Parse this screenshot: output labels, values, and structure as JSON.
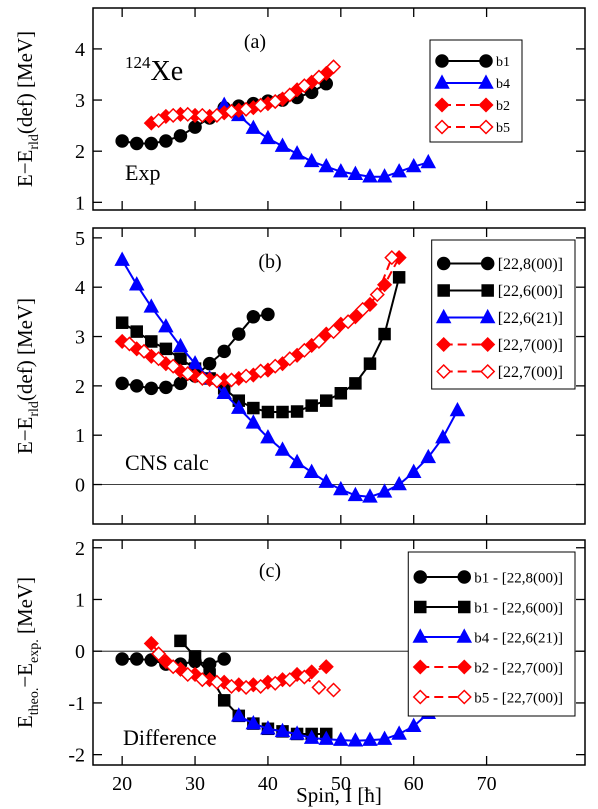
{
  "chart_data": [
    {
      "type": "line",
      "label": "(a)",
      "annotation": "Exp",
      "nucleus": [
        "124",
        "Xe"
      ],
      "y_label": [
        "E−E",
        "rld",
        "(def) [MeV]"
      ],
      "xlim": [
        16,
        83.5
      ],
      "xticks": [
        20,
        30,
        40,
        50,
        60,
        70
      ],
      "ylim": [
        0.85,
        4.8
      ],
      "yticks": [
        1,
        2,
        3,
        4
      ],
      "legend": "upper right",
      "series": [
        {
          "name": "b1",
          "color": "#000000",
          "marker": "circle",
          "filled": true,
          "dashed": false,
          "x": [
            20,
            22,
            24,
            26,
            28,
            30,
            32,
            34,
            36,
            38,
            40,
            42,
            44,
            46,
            48
          ],
          "values": [
            2.2,
            2.15,
            2.15,
            2.2,
            2.3,
            2.47,
            2.65,
            2.85,
            2.88,
            2.93,
            2.98,
            3.0,
            3.05,
            3.15,
            3.32
          ]
        },
        {
          "name": "b4",
          "color": "#0000ff",
          "marker": "triangle",
          "filled": true,
          "dashed": false,
          "x": [
            34,
            36,
            38,
            40,
            42,
            44,
            46,
            48,
            50,
            52,
            54,
            56,
            58,
            60,
            62
          ],
          "values": [
            2.9,
            2.7,
            2.45,
            2.25,
            2.1,
            1.95,
            1.8,
            1.7,
            1.6,
            1.55,
            1.5,
            1.5,
            1.6,
            1.7,
            1.78
          ]
        },
        {
          "name": "b2",
          "color": "#ff0000",
          "marker": "diamond",
          "filled": true,
          "dashed": true,
          "x": [
            24,
            26,
            28,
            30,
            32,
            34,
            36,
            38,
            40,
            42,
            44,
            46,
            48
          ],
          "values": [
            2.55,
            2.68,
            2.72,
            2.7,
            2.68,
            2.75,
            2.8,
            2.85,
            2.93,
            3.02,
            3.2,
            3.35,
            3.52
          ]
        },
        {
          "name": "b5",
          "color": "#ff0000",
          "marker": "diamond",
          "filled": false,
          "dashed": true,
          "x": [
            25,
            27,
            29,
            31,
            33,
            35,
            37,
            39,
            41,
            43,
            45,
            47,
            49
          ],
          "values": [
            2.6,
            2.7,
            2.72,
            2.7,
            2.7,
            2.78,
            2.82,
            2.9,
            2.97,
            3.1,
            3.28,
            3.45,
            3.65
          ]
        }
      ]
    },
    {
      "type": "line",
      "label": "(b)",
      "annotation": "CNS calc",
      "y_label": [
        "E−E",
        "rld",
        "(def) [MeV]"
      ],
      "xlim": [
        16,
        83.5
      ],
      "xticks": [
        20,
        30,
        40,
        50,
        60,
        70
      ],
      "ylim": [
        -0.8,
        5.2
      ],
      "yticks": [
        0,
        1,
        2,
        3,
        4,
        5
      ],
      "zero_line": 0,
      "legend": "upper right",
      "series": [
        {
          "name": "[22,8(00)]",
          "color": "#000000",
          "marker": "circle",
          "filled": true,
          "dashed": false,
          "x": [
            20,
            22,
            24,
            26,
            28,
            30,
            32,
            34,
            36,
            38,
            40
          ],
          "values": [
            2.05,
            2.0,
            1.95,
            1.97,
            2.05,
            2.2,
            2.45,
            2.7,
            3.05,
            3.4,
            3.45
          ]
        },
        {
          "name": "[22,6(00)]",
          "color": "#000000",
          "marker": "square",
          "filled": true,
          "dashed": false,
          "x": [
            20,
            22,
            24,
            26,
            28,
            30,
            32,
            34,
            36,
            38,
            40,
            42,
            44,
            46,
            48,
            50,
            52,
            54,
            56,
            58
          ],
          "values": [
            3.28,
            3.1,
            2.9,
            2.75,
            2.55,
            2.35,
            2.15,
            1.95,
            1.7,
            1.55,
            1.47,
            1.47,
            1.48,
            1.6,
            1.7,
            1.85,
            2.05,
            2.45,
            3.05,
            4.2
          ]
        },
        {
          "name": "[22,6(21)]",
          "color": "#0000ff",
          "marker": "triangle",
          "filled": true,
          "dashed": false,
          "x": [
            20,
            22,
            24,
            26,
            28,
            30,
            32,
            34,
            36,
            38,
            40,
            42,
            44,
            46,
            48,
            50,
            52,
            54,
            56,
            58,
            60,
            62,
            64,
            66
          ],
          "values": [
            4.55,
            4.05,
            3.6,
            3.2,
            2.8,
            2.45,
            2.15,
            1.85,
            1.55,
            1.25,
            0.95,
            0.7,
            0.45,
            0.25,
            0.05,
            -0.1,
            -0.22,
            -0.25,
            -0.15,
            0.0,
            0.25,
            0.55,
            0.95,
            1.5
          ]
        },
        {
          "name": "[22,7(00)]",
          "color": "#ff0000",
          "marker": "diamond",
          "filled": true,
          "dashed": true,
          "x": [
            20,
            22,
            24,
            26,
            28,
            30,
            32,
            34,
            36,
            38,
            40,
            42,
            44,
            46,
            48,
            50,
            52,
            54,
            56,
            58
          ],
          "values": [
            2.9,
            2.75,
            2.6,
            2.45,
            2.3,
            2.2,
            2.13,
            2.12,
            2.15,
            2.22,
            2.32,
            2.45,
            2.62,
            2.82,
            3.05,
            3.25,
            3.4,
            3.65,
            4.05,
            4.6
          ]
        },
        {
          "name": "[22,7(00)]",
          "color": "#ff0000",
          "marker": "diamond",
          "filled": false,
          "dashed": true,
          "x": [
            21,
            23,
            25,
            27,
            29,
            31,
            33,
            35,
            37,
            39,
            41,
            43,
            45,
            47,
            49,
            51,
            53,
            55,
            57
          ],
          "values": [
            2.85,
            2.7,
            2.55,
            2.4,
            2.25,
            2.15,
            2.1,
            2.12,
            2.2,
            2.3,
            2.4,
            2.55,
            2.72,
            2.9,
            3.1,
            3.3,
            3.55,
            3.85,
            4.6
          ]
        }
      ]
    },
    {
      "type": "line",
      "label": "(c)",
      "annotation": "Difference",
      "y_label": [
        "E",
        "theo.",
        "−E",
        "exp.",
        " [MeV]"
      ],
      "x_label": "Spin, I [ħ]",
      "xlim": [
        16,
        83.5
      ],
      "xticks": [
        20,
        30,
        40,
        50,
        60,
        70
      ],
      "ylim": [
        -2.2,
        2.15
      ],
      "yticks": [
        -2,
        -1,
        0,
        1,
        2
      ],
      "zero_line": 0,
      "legend": "upper right",
      "series": [
        {
          "name": "b1 - [22,8(00)]",
          "color": "#000000",
          "marker": "circle",
          "filled": true,
          "dashed": false,
          "x": [
            20,
            22,
            24,
            26,
            28,
            30,
            32,
            34
          ],
          "values": [
            -0.15,
            -0.15,
            -0.17,
            -0.25,
            -0.25,
            -0.2,
            -0.25,
            -0.15
          ]
        },
        {
          "name": "b1 - [22,6(00)]",
          "color": "#000000",
          "marker": "square",
          "filled": true,
          "dashed": false,
          "x": [
            28,
            30,
            32,
            34,
            36,
            38,
            40,
            42,
            44,
            46,
            48
          ],
          "values": [
            0.2,
            -0.1,
            -0.45,
            -0.95,
            -1.25,
            -1.4,
            -1.5,
            -1.55,
            -1.6,
            -1.6,
            -1.6
          ]
        },
        {
          "name": "b4 - [22,6(21)]",
          "color": "#0000ff",
          "marker": "triangle",
          "filled": true,
          "dashed": false,
          "x": [
            36,
            38,
            40,
            42,
            44,
            46,
            48,
            50,
            52,
            54,
            56,
            58,
            60,
            62
          ],
          "values": [
            -1.25,
            -1.4,
            -1.5,
            -1.55,
            -1.6,
            -1.68,
            -1.7,
            -1.72,
            -1.73,
            -1.72,
            -1.7,
            -1.6,
            -1.45,
            -1.2
          ]
        },
        {
          "name": "b2 - [22,7(00)]",
          "color": "#ff0000",
          "marker": "diamond",
          "filled": true,
          "dashed": true,
          "x": [
            24,
            26,
            28,
            30,
            32,
            34,
            36,
            38,
            40,
            42,
            44,
            46,
            48
          ],
          "values": [
            0.15,
            -0.2,
            -0.35,
            -0.45,
            -0.55,
            -0.6,
            -0.65,
            -0.65,
            -0.6,
            -0.55,
            -0.45,
            -0.4,
            -0.3
          ]
        },
        {
          "name": "b5 - [22,7(00)]",
          "color": "#ff0000",
          "marker": "diamond",
          "filled": false,
          "dashed": true,
          "x": [
            25,
            27,
            29,
            31,
            33,
            35,
            37,
            39,
            41,
            43,
            45,
            47,
            49
          ],
          "values": [
            -0.05,
            -0.3,
            -0.45,
            -0.55,
            -0.6,
            -0.68,
            -0.7,
            -0.68,
            -0.62,
            -0.55,
            -0.5,
            -0.7,
            -0.75
          ]
        }
      ]
    }
  ]
}
